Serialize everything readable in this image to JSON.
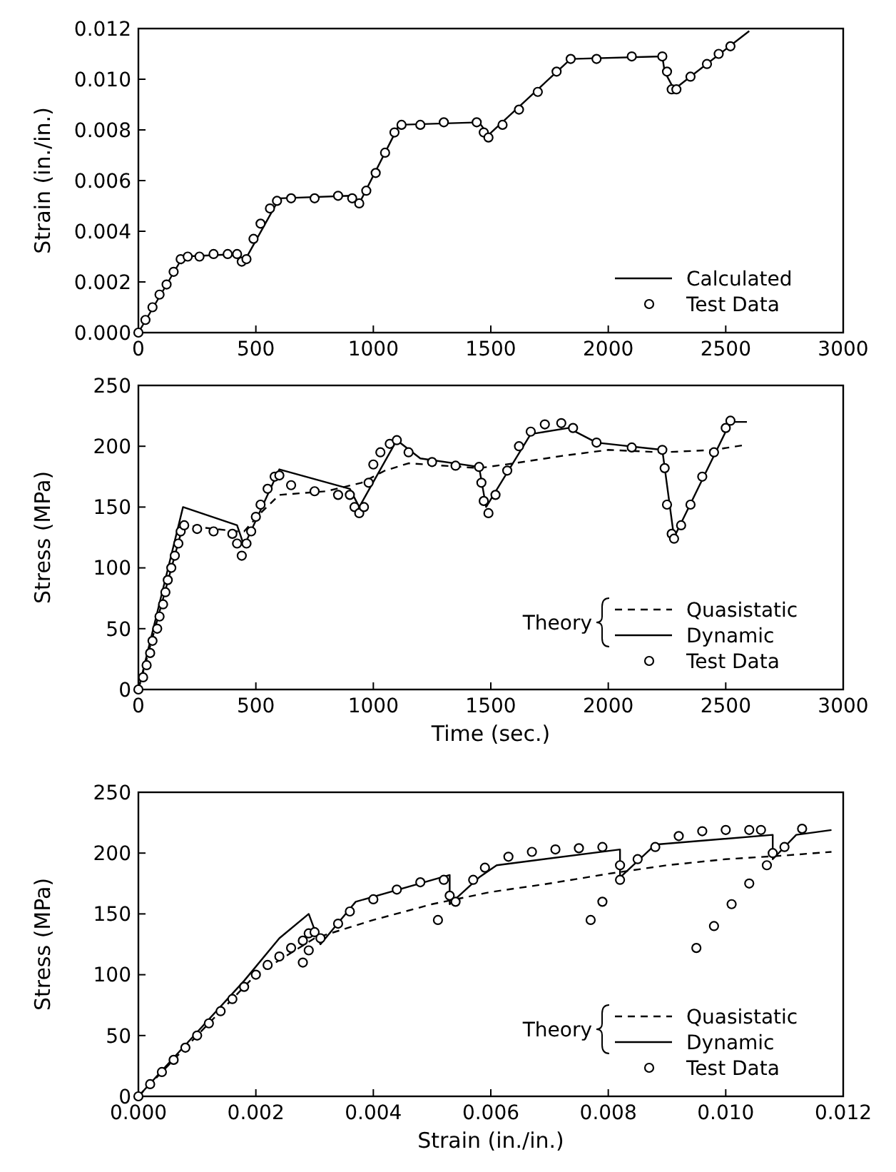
{
  "chart_data": [
    {
      "type": "line",
      "ylabel": "Strain (in./in.)",
      "xlim": [
        0,
        3000
      ],
      "xticks": [
        0,
        500,
        1000,
        1500,
        2000,
        2500,
        3000
      ],
      "ylim": [
        0,
        0.012
      ],
      "yticks": [
        {
          "value": 0,
          "label": "0.000"
        },
        {
          "value": 0.002,
          "label": "0.002"
        },
        {
          "value": 0.004,
          "label": "0.004"
        },
        {
          "value": 0.006,
          "label": "0.006"
        },
        {
          "value": 0.008,
          "label": "0.008"
        },
        {
          "value": 0.01,
          "label": "0.010"
        },
        {
          "value": 0.012,
          "label": "0.012"
        }
      ],
      "grid": false,
      "legend": "bottom right",
      "series": [
        {
          "name": "Calculated",
          "color": "#000000",
          "line_style": "solid",
          "x": [
            0,
            190,
            420,
            450,
            600,
            900,
            940,
            1110,
            1450,
            1490,
            1840,
            2230,
            2240,
            2280,
            2600
          ],
          "values": [
            0,
            0.003,
            0.0031,
            0.0028,
            0.0053,
            0.0054,
            0.0051,
            0.0082,
            0.0083,
            0.0078,
            0.0108,
            0.0109,
            0.0103,
            0.0096,
            0.0119
          ]
        },
        {
          "name": "Test Data",
          "type": "scatter",
          "color": "#000000",
          "marker": "circle",
          "x": [
            0,
            30,
            60,
            90,
            120,
            150,
            180,
            210,
            260,
            320,
            380,
            420,
            440,
            460,
            490,
            520,
            560,
            590,
            650,
            750,
            850,
            910,
            940,
            970,
            1010,
            1050,
            1090,
            1120,
            1200,
            1300,
            1440,
            1470,
            1490,
            1550,
            1620,
            1700,
            1780,
            1840,
            1950,
            2100,
            2230,
            2250,
            2270,
            2290,
            2350,
            2420,
            2470,
            2520
          ],
          "values": [
            0,
            0.0005,
            0.001,
            0.0015,
            0.0019,
            0.0024,
            0.0029,
            0.003,
            0.003,
            0.0031,
            0.0031,
            0.0031,
            0.0028,
            0.0029,
            0.0037,
            0.0043,
            0.0049,
            0.0052,
            0.0053,
            0.0053,
            0.0054,
            0.0053,
            0.0051,
            0.0056,
            0.0063,
            0.0071,
            0.0079,
            0.0082,
            0.0082,
            0.0083,
            0.0083,
            0.0079,
            0.0077,
            0.0082,
            0.0088,
            0.0095,
            0.0103,
            0.0108,
            0.0108,
            0.0109,
            0.0109,
            0.0103,
            0.0096,
            0.0096,
            0.0101,
            0.0106,
            0.011,
            0.0113
          ]
        }
      ]
    },
    {
      "type": "line",
      "ylabel": "Stress (MPa)",
      "xlabel": "Time (sec.)",
      "legend_title": "Theory",
      "xlim": [
        0,
        3000
      ],
      "xticks": [
        0,
        500,
        1000,
        1500,
        2000,
        2500,
        3000
      ],
      "ylim": [
        0,
        250
      ],
      "yticks": [
        0,
        50,
        100,
        150,
        200,
        250
      ],
      "grid": false,
      "legend": "bottom right",
      "series": [
        {
          "name": "Quasistatic",
          "color": "#000000",
          "line_style": "dashed",
          "x": [
            0,
            190,
            420,
            450,
            520,
            600,
            800,
            950,
            1050,
            1150,
            1450,
            1600,
            1800,
            2000,
            2230,
            2450,
            2580
          ],
          "values": [
            0,
            135,
            130,
            130,
            145,
            160,
            163,
            170,
            180,
            186,
            182,
            186,
            192,
            197,
            195,
            197,
            201
          ]
        },
        {
          "name": "Dynamic",
          "color": "#000000",
          "line_style": "solid",
          "x": [
            0,
            190,
            420,
            450,
            600,
            900,
            940,
            1100,
            1200,
            1450,
            1480,
            1670,
            1830,
            1950,
            2230,
            2280,
            2520,
            2590
          ],
          "values": [
            0,
            150,
            135,
            118,
            181,
            165,
            150,
            205,
            190,
            183,
            150,
            210,
            215,
            203,
            197,
            125,
            220,
            220
          ]
        },
        {
          "name": "Test Data",
          "type": "scatter",
          "color": "#000000",
          "marker": "circle",
          "x": [
            0,
            20,
            35,
            50,
            60,
            80,
            90,
            105,
            115,
            125,
            140,
            155,
            170,
            180,
            195,
            250,
            320,
            400,
            420,
            440,
            460,
            480,
            500,
            520,
            550,
            580,
            600,
            650,
            750,
            850,
            900,
            920,
            940,
            960,
            980,
            1000,
            1030,
            1070,
            1100,
            1150,
            1250,
            1350,
            1450,
            1460,
            1470,
            1490,
            1520,
            1570,
            1620,
            1670,
            1730,
            1800,
            1850,
            1950,
            2100,
            2230,
            2240,
            2250,
            2270,
            2280,
            2310,
            2350,
            2400,
            2450,
            2500,
            2520
          ],
          "values": [
            0,
            10,
            20,
            30,
            40,
            50,
            60,
            70,
            80,
            90,
            100,
            110,
            120,
            130,
            135,
            132,
            130,
            128,
            120,
            110,
            120,
            130,
            142,
            152,
            165,
            175,
            176,
            168,
            163,
            160,
            160,
            150,
            145,
            150,
            170,
            185,
            195,
            202,
            205,
            195,
            187,
            184,
            183,
            170,
            155,
            145,
            160,
            180,
            200,
            212,
            218,
            219,
            215,
            203,
            199,
            197,
            182,
            152,
            128,
            124,
            135,
            152,
            175,
            195,
            215,
            221
          ]
        }
      ]
    },
    {
      "type": "line",
      "ylabel": "Stress (MPa)",
      "xlabel": "Strain (in./in.)",
      "legend_title": "Theory",
      "xlim": [
        0,
        0.012
      ],
      "xticks": [
        {
          "value": 0,
          "label": "0.000"
        },
        {
          "value": 0.002,
          "label": "0.002"
        },
        {
          "value": 0.004,
          "label": "0.004"
        },
        {
          "value": 0.006,
          "label": "0.006"
        },
        {
          "value": 0.008,
          "label": "0.008"
        },
        {
          "value": 0.01,
          "label": "0.010"
        },
        {
          "value": 0.012,
          "label": "0.012"
        }
      ],
      "ylim": [
        0,
        250
      ],
      "yticks": [
        0,
        50,
        100,
        150,
        200,
        250
      ],
      "grid": false,
      "legend": "bottom right",
      "series": [
        {
          "name": "Quasistatic",
          "color": "#000000",
          "line_style": "dashed",
          "x": [
            0,
            0.002,
            0.003,
            0.004,
            0.005,
            0.006,
            0.007,
            0.008,
            0.009,
            0.01,
            0.011,
            0.0118
          ],
          "values": [
            0,
            100,
            130,
            145,
            158,
            168,
            175,
            183,
            190,
            195,
            198,
            201
          ]
        },
        {
          "name": "Dynamic",
          "color": "#000000",
          "line_style": "solid",
          "x": [
            0,
            0.0018,
            0.0024,
            0.0029,
            0.003,
            0.0031,
            0.0037,
            0.0053,
            0.0053,
            0.0058,
            0.0061,
            0.0082,
            0.0082,
            0.0088,
            0.0108,
            0.0108,
            0.0112,
            0.0118
          ],
          "values": [
            0,
            95,
            130,
            150,
            137,
            125,
            160,
            182,
            158,
            180,
            190,
            203,
            180,
            207,
            215,
            195,
            215,
            219
          ]
        },
        {
          "name": "Test Data",
          "type": "scatter",
          "color": "#000000",
          "marker": "circle",
          "x": [
            0,
            0.0002,
            0.0004,
            0.0006,
            0.0008,
            0.001,
            0.0012,
            0.0014,
            0.0016,
            0.0018,
            0.002,
            0.0022,
            0.0024,
            0.0026,
            0.0028,
            0.0029,
            0.003,
            0.0031,
            0.0028,
            0.0029,
            0.0034,
            0.0036,
            0.004,
            0.0044,
            0.0048,
            0.0052,
            0.0053,
            0.0051,
            0.0054,
            0.0057,
            0.0059,
            0.0063,
            0.0067,
            0.0071,
            0.0075,
            0.0079,
            0.0082,
            0.0077,
            0.0079,
            0.0082,
            0.0085,
            0.0088,
            0.0092,
            0.0096,
            0.01,
            0.0104,
            0.0106,
            0.0108,
            0.0095,
            0.0098,
            0.0101,
            0.0104,
            0.0107,
            0.011,
            0.0113
          ],
          "values": [
            0,
            10,
            20,
            30,
            40,
            50,
            60,
            70,
            80,
            90,
            100,
            108,
            115,
            122,
            128,
            134,
            135,
            130,
            110,
            120,
            142,
            152,
            162,
            170,
            176,
            178,
            165,
            145,
            160,
            178,
            188,
            197,
            201,
            203,
            204,
            205,
            190,
            145,
            160,
            178,
            195,
            205,
            214,
            218,
            219,
            219,
            219,
            200,
            122,
            140,
            158,
            175,
            190,
            205,
            220
          ]
        }
      ]
    }
  ]
}
